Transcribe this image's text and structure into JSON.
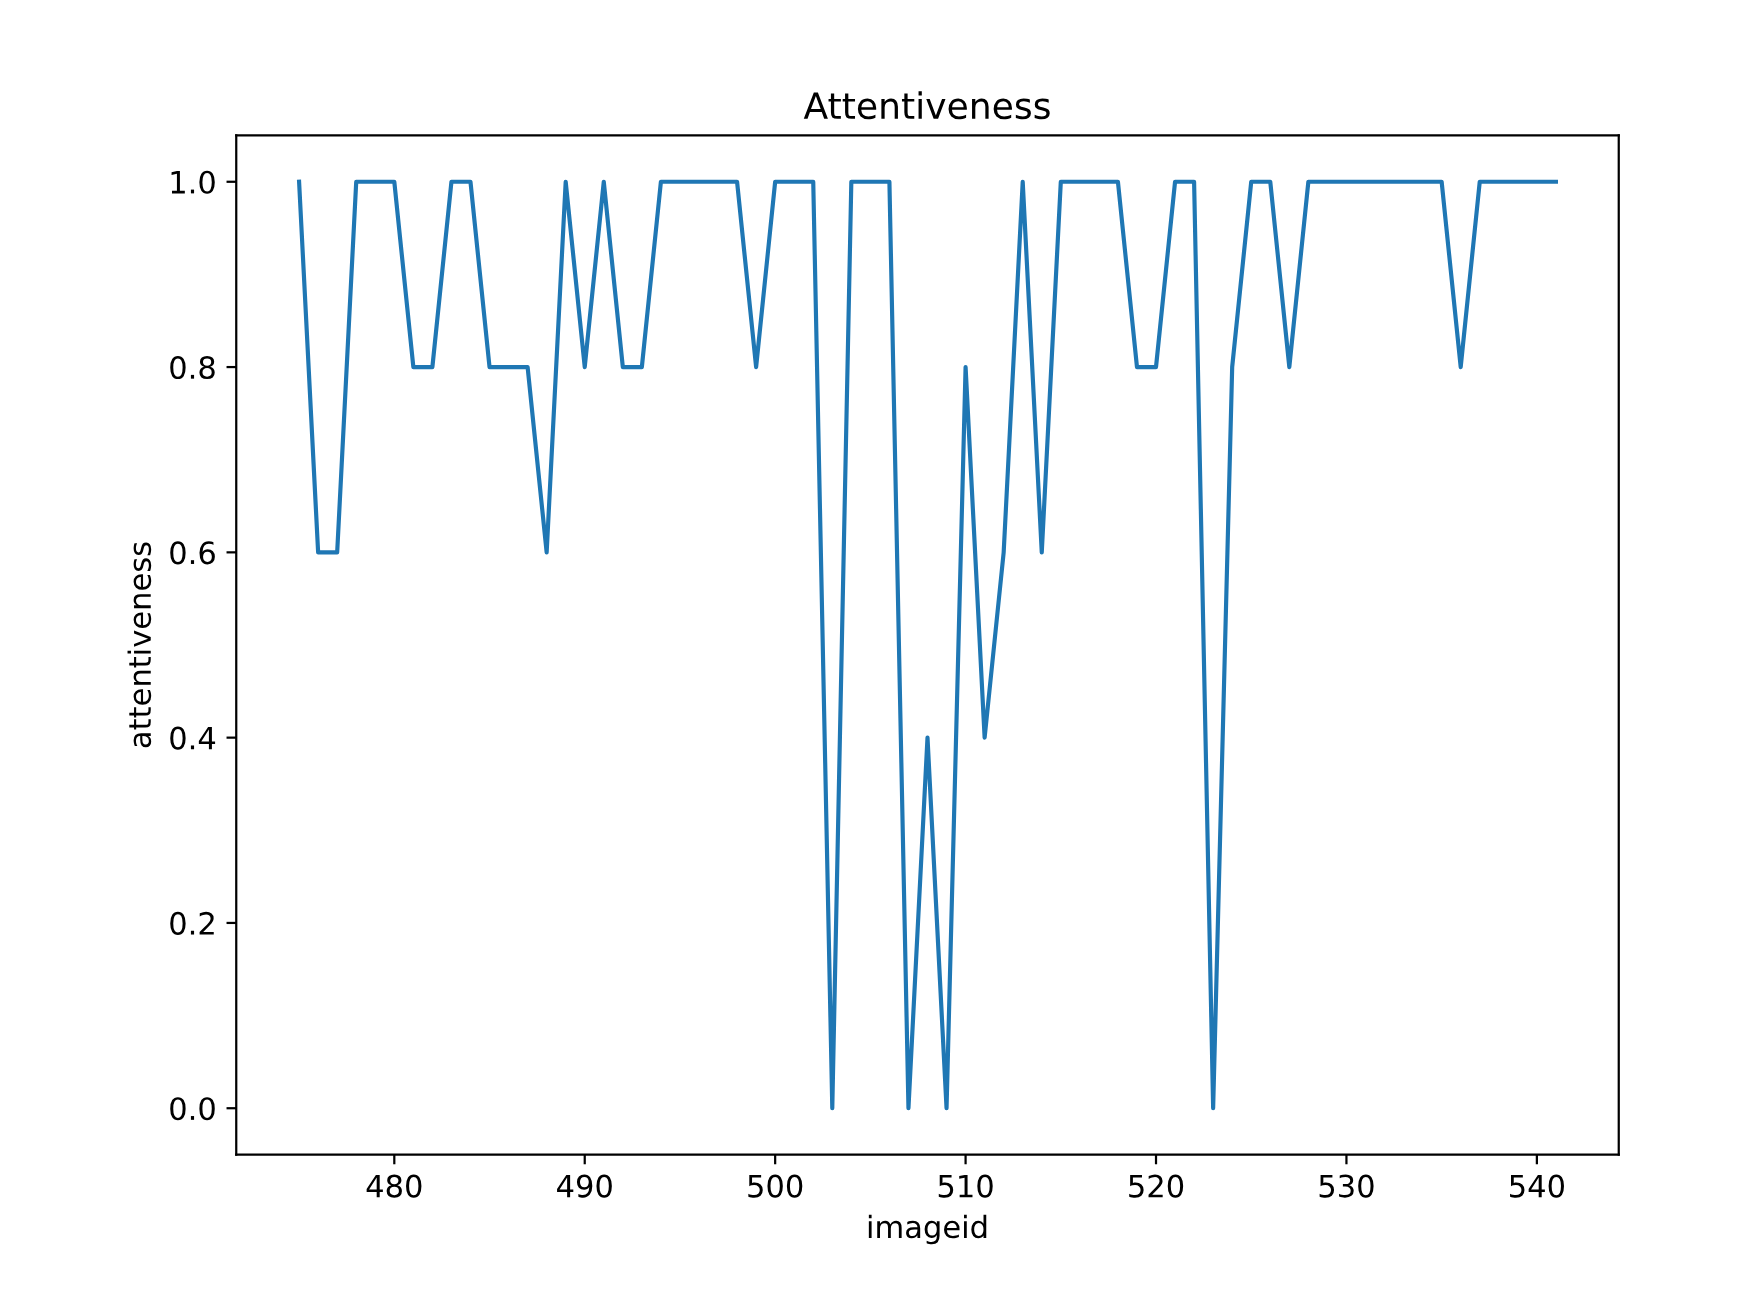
{
  "chart_data": {
    "type": "line",
    "title": "Attentiveness",
    "xlabel": "imageid",
    "ylabel": "attentiveness",
    "x": [
      475,
      476,
      477,
      478,
      479,
      480,
      481,
      482,
      483,
      484,
      485,
      486,
      487,
      488,
      489,
      490,
      491,
      492,
      493,
      494,
      495,
      496,
      497,
      498,
      499,
      500,
      501,
      502,
      503,
      504,
      505,
      506,
      507,
      508,
      509,
      510,
      511,
      512,
      513,
      514,
      515,
      516,
      517,
      518,
      519,
      520,
      521,
      522,
      523,
      524,
      525,
      526,
      527,
      528,
      529,
      530,
      531,
      532,
      533,
      534,
      535,
      536,
      537,
      538,
      539,
      540,
      541
    ],
    "series": [
      {
        "color": "#1f77b4",
        "values": [
          1,
          0.6,
          0.6,
          1,
          1,
          1,
          0.8,
          0.8,
          1,
          1,
          0.8,
          0.8,
          0.8,
          0.6,
          1,
          0.8,
          1,
          0.8,
          0.8,
          1,
          1,
          1,
          1,
          1,
          0.8,
          1,
          1,
          1,
          0,
          1,
          1,
          1,
          0,
          0.4,
          0,
          0.8,
          0.4,
          0.6,
          1,
          0.6,
          1,
          1,
          1,
          1,
          0.8,
          0.8,
          1,
          1,
          0,
          0.8,
          1,
          1,
          0.8,
          1,
          1,
          1,
          1,
          1,
          1,
          1,
          1,
          0.8,
          1,
          1,
          1,
          1,
          1
        ]
      }
    ],
    "xlim": [
      471.7,
      544.3
    ],
    "ylim": [
      -0.05,
      1.05
    ],
    "xticks": [
      480,
      490,
      500,
      510,
      520,
      530,
      540
    ],
    "yticks": [
      {
        "value": 0,
        "label": "0.0"
      },
      {
        "value": 0.2,
        "label": "0.2"
      },
      {
        "value": 0.4,
        "label": "0.4"
      },
      {
        "value": 0.6,
        "label": "0.6"
      },
      {
        "value": 0.8,
        "label": "0.8"
      },
      {
        "value": 1,
        "label": "1.0"
      }
    ],
    "grid": false,
    "legend": false
  }
}
